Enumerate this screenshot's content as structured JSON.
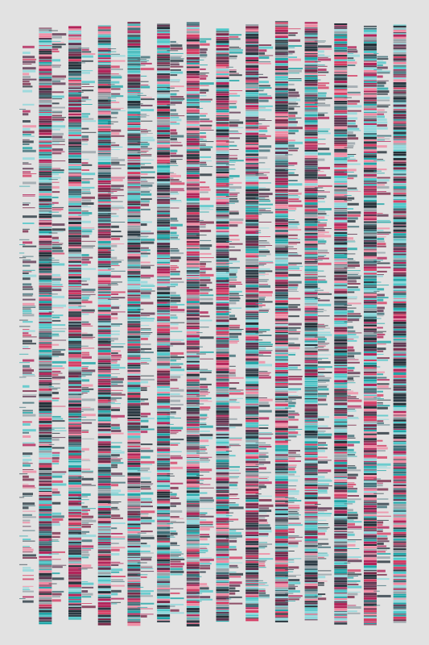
{
  "palette": [
    "#2b3a44",
    "#3f6f78",
    "#1fa6a8",
    "#7a2a4a",
    "#d63d64",
    "#5c3550",
    "#8fd8dc",
    "#f08aa3",
    "#99a4aa",
    "#243038",
    "#b3245a",
    "#4ec7c9"
  ],
  "background": "#e2e2e2"
}
